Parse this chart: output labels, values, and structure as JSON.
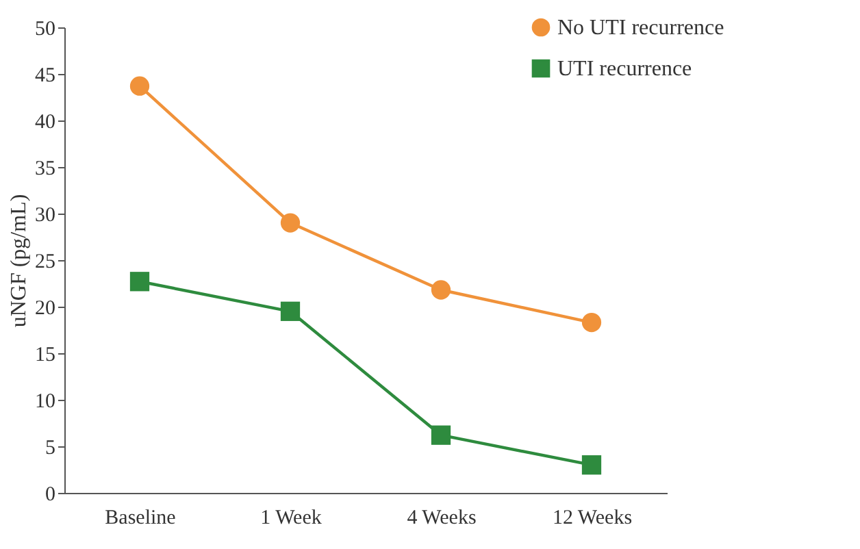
{
  "chart_data": {
    "type": "line",
    "ylabel": "uNGF (pg/mL)",
    "categories": [
      "Baseline",
      "1 Week",
      "4 Weeks",
      "12 Weeks"
    ],
    "series": [
      {
        "name": "No UTI recurrence",
        "color": "#f0923a",
        "marker": "circle",
        "values": [
          43.7,
          29.0,
          21.8,
          18.3
        ]
      },
      {
        "name": "UTI recurrence",
        "color": "#2e8b3e",
        "marker": "square",
        "values": [
          22.7,
          19.5,
          6.2,
          3.0
        ]
      }
    ],
    "ylim": [
      0,
      50
    ],
    "yticks": [
      0,
      5,
      10,
      15,
      20,
      25,
      30,
      35,
      40,
      45,
      50
    ],
    "grid": false,
    "legend": "top right",
    "line_style": "solid"
  }
}
